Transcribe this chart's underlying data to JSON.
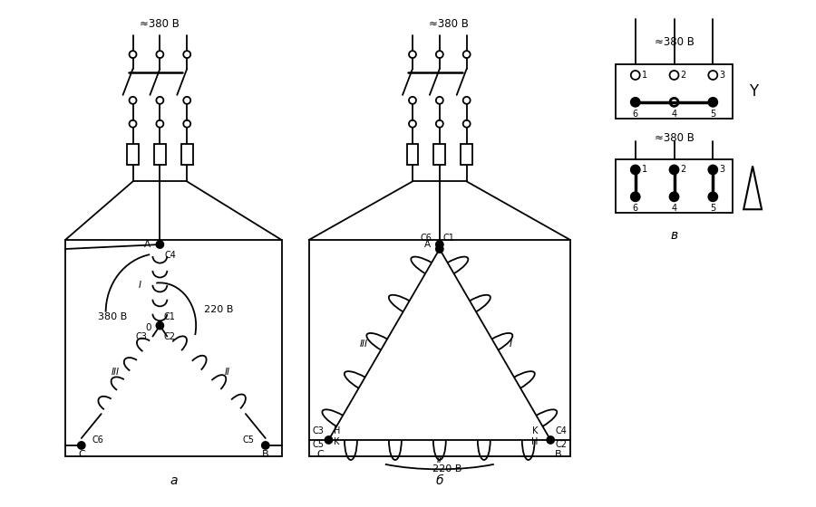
{
  "bg_color": "#ffffff",
  "line_color": "#000000",
  "title_a": "а",
  "title_b": "б",
  "title_c": "в",
  "lbl_380_a": "≈380 В",
  "lbl_380_b": "≈380 В",
  "lbl_380_c1": "≈380 В",
  "lbl_380_c2": "≈380 В",
  "lbl_380_inside": "380 В",
  "lbl_220_a": "220 В",
  "lbl_220_b": "220 В",
  "font_small": 7.5,
  "font_label": 8.5,
  "font_title": 10
}
